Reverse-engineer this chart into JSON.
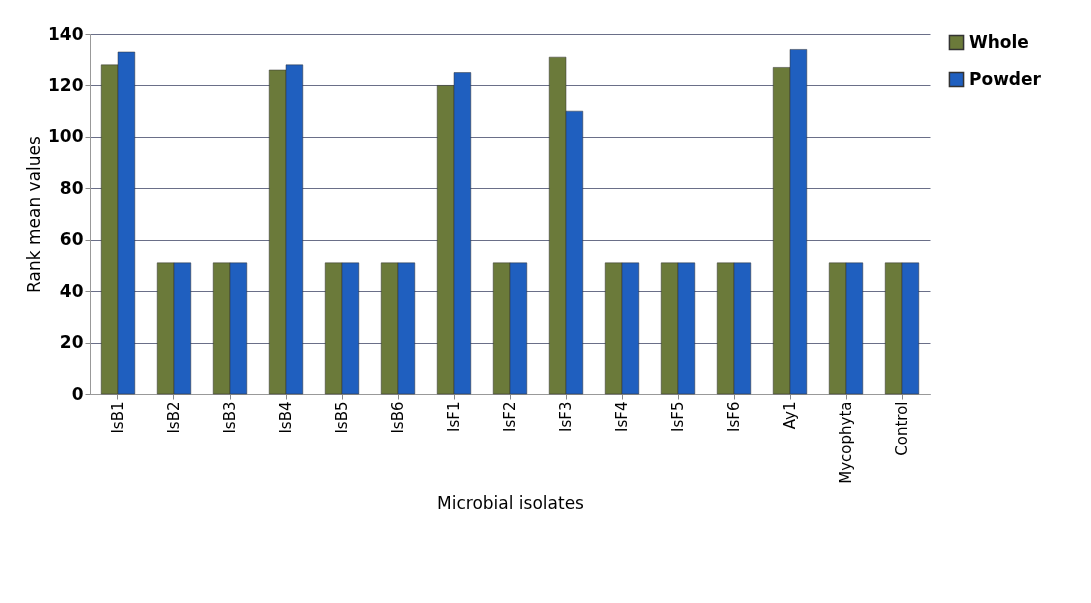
{
  "chart_data": {
    "type": "bar",
    "xlabel": "Microbial isolates",
    "ylabel": "Rank mean values",
    "categories": [
      "IsB1",
      "IsB2",
      "IsB3",
      "IsB4",
      "IsB5",
      "IsB6",
      "IsF1",
      "IsF2",
      "IsF3",
      "IsF4",
      "IsF5",
      "IsF6",
      "Ay1",
      "Mycophyta",
      "Control"
    ],
    "series": [
      {
        "name": "Whole",
        "color": "#6b7a3a",
        "values": [
          128,
          51,
          51,
          126,
          51,
          51,
          120,
          51,
          131,
          51,
          51,
          51,
          127,
          51,
          51
        ]
      },
      {
        "name": "Powder",
        "color": "#1f5fbf",
        "values": [
          133,
          51,
          51,
          128,
          51,
          51,
          125,
          51,
          110,
          51,
          51,
          51,
          134,
          51,
          51
        ]
      }
    ],
    "ylim": [
      0,
      140
    ],
    "yticks": [
      0,
      20,
      40,
      60,
      80,
      100,
      120,
      140
    ],
    "grid": "y",
    "legend": "right"
  }
}
